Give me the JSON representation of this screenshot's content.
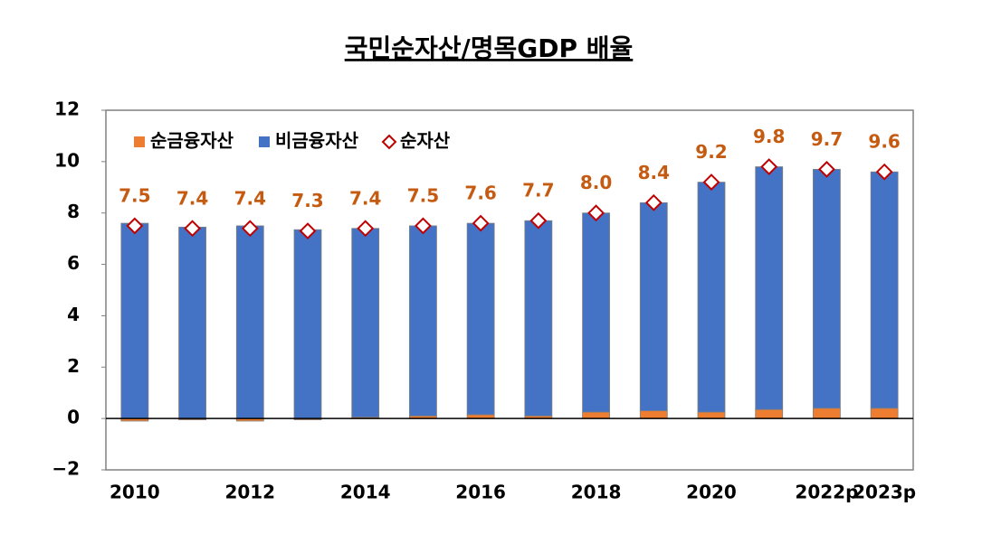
{
  "chart_data": {
    "type": "bar",
    "stacked": true,
    "title": "국민순자산/명목GDP 배율",
    "categories": [
      "2010",
      null,
      "2012",
      null,
      "2014",
      null,
      "2016",
      null,
      "2018",
      null,
      "2020",
      null,
      "2022p",
      "2023p"
    ],
    "series": [
      {
        "name": "순금융자산",
        "color": "#ed7d31",
        "values": [
          -0.1,
          -0.05,
          -0.1,
          -0.05,
          0.05,
          0.1,
          0.15,
          0.1,
          0.25,
          0.3,
          0.25,
          0.35,
          0.4,
          0.4
        ]
      },
      {
        "name": "비금융자산",
        "color": "#4472c4",
        "values": [
          7.6,
          7.45,
          7.5,
          7.35,
          7.35,
          7.4,
          7.45,
          7.6,
          7.75,
          8.1,
          8.95,
          9.45,
          9.3,
          9.2
        ]
      },
      {
        "name": "순자산",
        "type": "marker",
        "color": "#c00000",
        "label_color": "#c55a11",
        "values": [
          7.5,
          7.4,
          7.4,
          7.3,
          7.4,
          7.5,
          7.6,
          7.7,
          8.0,
          8.4,
          9.2,
          9.8,
          9.7,
          9.6
        ],
        "value_labels": [
          "7.5",
          "7.4",
          "7.4",
          "7.3",
          "7.4",
          "7.5",
          "7.6",
          "7.7",
          "8.0",
          "8.4",
          "9.2",
          "9.8",
          "9.7",
          "9.6"
        ]
      }
    ],
    "ylim": [
      -2,
      12
    ],
    "yticks": [
      {
        "value": -2,
        "label": "−2"
      },
      0,
      2,
      4,
      6,
      8,
      10,
      12
    ],
    "grid": false,
    "legend": "top-left"
  }
}
